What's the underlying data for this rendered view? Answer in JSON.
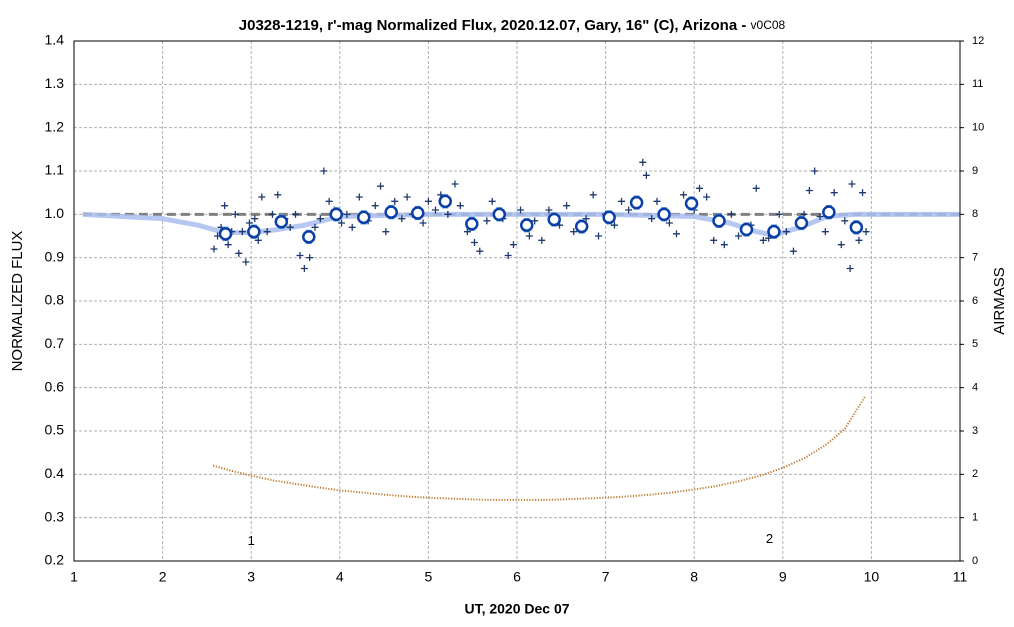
{
  "chart_data": {
    "type": "scatter",
    "title": "J0328-1219, r'-mag Normalized Flux, 2020.12.07, Gary, 16\" (C), Arizona - ",
    "subtitle": "v0C08",
    "x_label": "UT, 2020 Dec 07",
    "y_label": "NORMALIZED FLUX",
    "y2_label": "AIRMASS",
    "xlim": [
      1,
      11
    ],
    "xticks": [
      1,
      2,
      3,
      4,
      5,
      6,
      7,
      8,
      9,
      10,
      11
    ],
    "ylim": [
      0.2,
      1.4
    ],
    "yticks": [
      0.2,
      0.3,
      0.4,
      0.5,
      0.6,
      0.7,
      0.8,
      0.9,
      {
        "value": 1,
        "label": "1.0"
      },
      1.1,
      1.2,
      1.3,
      1.4
    ],
    "y2lim": [
      0,
      12
    ],
    "y2ticks": [
      0,
      1,
      2,
      3,
      4,
      5,
      6,
      7,
      8,
      9,
      10,
      11,
      12
    ],
    "grid": true,
    "annotations": [
      {
        "text": "1",
        "x": 3,
        "y": 0.245
      },
      {
        "text": "2",
        "x": 8.85,
        "y": 0.25
      }
    ],
    "series": [
      {
        "kind": "dashed",
        "color": "#808080",
        "x": [
          1.1,
          11
        ],
        "values": [
          1,
          1
        ]
      },
      {
        "kind": "line",
        "color": "#a9bdf0",
        "x": [
          1.1,
          2.0,
          2.4,
          2.7,
          3.0,
          3.3,
          3.6,
          4.0,
          5.0,
          6.0,
          7.0,
          8.0,
          8.4,
          8.7,
          8.9,
          9.2,
          9.5,
          9.8,
          11
        ],
        "values": [
          1.0,
          0.99,
          0.975,
          0.958,
          0.958,
          0.965,
          0.975,
          0.995,
          1.0,
          1.0,
          1.0,
          0.995,
          0.98,
          0.96,
          0.952,
          0.97,
          0.995,
          1.0,
          1.0
        ]
      },
      {
        "kind": "points",
        "color": "#1f3a6e",
        "x": [
          2.58,
          2.62,
          2.66,
          2.7,
          2.74,
          2.78,
          2.82,
          2.86,
          2.9,
          2.94,
          2.98,
          3.04,
          3.08,
          3.12,
          3.18,
          3.24,
          3.3,
          3.38,
          3.44,
          3.5,
          3.55,
          3.6,
          3.66,
          3.72,
          3.78,
          3.82,
          3.88,
          3.94,
          4.02,
          4.08,
          4.14,
          4.22,
          4.32,
          4.4,
          4.46,
          4.52,
          4.62,
          4.7,
          4.76,
          4.82,
          4.94,
          5.0,
          5.08,
          5.14,
          5.22,
          5.3,
          5.36,
          5.44,
          5.52,
          5.58,
          5.66,
          5.72,
          5.84,
          5.9,
          5.96,
          6.04,
          6.14,
          6.2,
          6.28,
          6.36,
          6.48,
          6.56,
          6.64,
          6.78,
          6.86,
          6.92,
          7.0,
          7.1,
          7.18,
          7.26,
          7.42,
          7.46,
          7.52,
          7.58,
          7.72,
          7.8,
          7.88,
          8.0,
          8.06,
          8.14,
          8.22,
          8.34,
          8.42,
          8.5,
          8.64,
          8.7,
          8.78,
          8.84,
          8.96,
          9.04,
          9.12,
          9.24,
          9.3,
          9.36,
          9.42,
          9.48,
          9.58,
          9.66,
          9.7,
          9.76,
          9.78,
          9.86,
          9.9,
          9.94
        ],
        "values": [
          0.92,
          0.95,
          0.97,
          1.02,
          0.93,
          0.96,
          1.0,
          0.91,
          0.96,
          0.89,
          0.98,
          0.99,
          0.94,
          1.04,
          0.96,
          1.0,
          1.045,
          0.99,
          0.97,
          1.0,
          0.905,
          0.875,
          0.9,
          0.97,
          0.99,
          1.1,
          1.03,
          1.01,
          0.98,
          1.0,
          0.97,
          1.04,
          0.985,
          1.02,
          1.065,
          0.96,
          1.03,
          0.99,
          1.04,
          1.0,
          0.98,
          1.03,
          1.01,
          1.045,
          1.0,
          1.07,
          1.02,
          0.96,
          0.935,
          0.915,
          0.985,
          1.03,
          0.99,
          0.905,
          0.93,
          1.01,
          0.95,
          0.985,
          0.94,
          1.01,
          0.975,
          1.02,
          0.96,
          0.99,
          1.045,
          0.95,
          1.0,
          0.975,
          1.03,
          1.01,
          1.12,
          1.09,
          0.99,
          1.03,
          0.98,
          0.955,
          1.045,
          1.01,
          1.06,
          1.04,
          0.94,
          0.93,
          1.0,
          0.95,
          0.975,
          1.06,
          0.94,
          0.945,
          1.0,
          0.96,
          0.915,
          1.0,
          1.055,
          1.1,
          0.995,
          0.96,
          1.05,
          0.93,
          0.985,
          0.875,
          1.07,
          0.94,
          1.05,
          0.96
        ]
      },
      {
        "kind": "circles",
        "color": "#0b3fa8",
        "error_color": "#5b9bd5",
        "x": [
          2.71,
          3.03,
          3.34,
          3.65,
          3.96,
          4.27,
          4.58,
          4.88,
          5.19,
          5.49,
          5.8,
          6.11,
          6.42,
          6.73,
          7.04,
          7.35,
          7.66,
          7.97,
          8.28,
          8.59,
          8.9,
          9.21,
          9.52,
          9.83
        ],
        "values": [
          0.955,
          0.96,
          0.983,
          0.948,
          1.0,
          0.993,
          1.005,
          1.003,
          1.03,
          0.978,
          1.0,
          0.975,
          0.988,
          0.972,
          0.993,
          1.027,
          1.0,
          1.025,
          0.985,
          0.965,
          0.96,
          0.98,
          1.005,
          0.97
        ],
        "errors": [
          0.015,
          0.015,
          0.015,
          0.015,
          0.015,
          0.015,
          0.015,
          0.015,
          0.015,
          0.015,
          0.015,
          0.015,
          0.015,
          0.015,
          0.015,
          0.015,
          0.015,
          0.015,
          0.015,
          0.015,
          0.015,
          0.015,
          0.015,
          0.015
        ]
      },
      {
        "kind": "dots",
        "color": "#c07a30",
        "axis": "y2",
        "x": [
          2.57,
          2.8,
          3.0,
          3.25,
          3.5,
          3.75,
          4.0,
          4.25,
          4.5,
          4.75,
          5.0,
          5.25,
          5.5,
          5.75,
          6.0,
          6.25,
          6.5,
          6.75,
          7.0,
          7.25,
          7.5,
          7.75,
          8.0,
          8.25,
          8.5,
          8.75,
          9.0,
          9.25,
          9.5,
          9.7,
          9.93
        ],
        "values": [
          2.2,
          2.07,
          1.97,
          1.86,
          1.78,
          1.7,
          1.63,
          1.58,
          1.53,
          1.49,
          1.46,
          1.44,
          1.42,
          1.41,
          1.41,
          1.41,
          1.42,
          1.44,
          1.46,
          1.49,
          1.53,
          1.58,
          1.65,
          1.73,
          1.84,
          1.97,
          2.15,
          2.38,
          2.7,
          3.05,
          3.8
        ]
      }
    ]
  }
}
